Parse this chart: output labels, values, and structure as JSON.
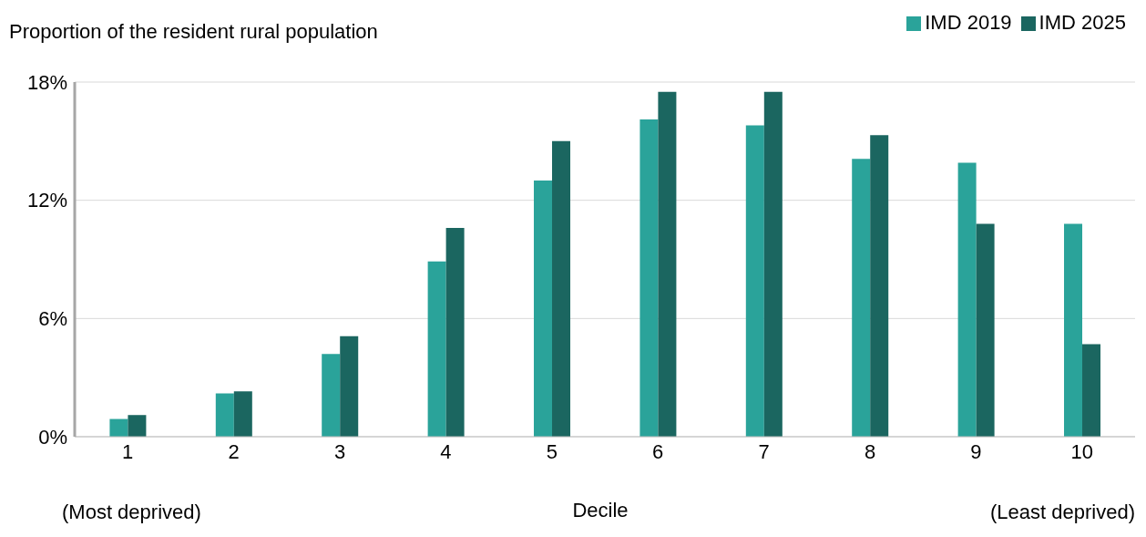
{
  "chart_data": {
    "type": "bar",
    "ylabel": "Proportion of the resident rural population",
    "xlabel": "Decile",
    "categories": [
      "1",
      "2",
      "3",
      "4",
      "5",
      "6",
      "7",
      "8",
      "9",
      "10"
    ],
    "series": [
      {
        "name": "IMD 2019",
        "color": "#2aa39a",
        "values": [
          0.9,
          2.2,
          4.2,
          8.9,
          13.0,
          16.1,
          15.8,
          14.1,
          13.9,
          10.8
        ]
      },
      {
        "name": "IMD 2025",
        "color": "#1b6660",
        "values": [
          1.1,
          2.3,
          5.1,
          10.6,
          15.0,
          17.5,
          17.5,
          15.3,
          10.8,
          4.7
        ]
      }
    ],
    "ylim": [
      0,
      18
    ],
    "yticks": [
      {
        "value": 0,
        "label": "0%"
      },
      {
        "value": 6,
        "label": "6%"
      },
      {
        "value": 12,
        "label": "12%"
      },
      {
        "value": 18,
        "label": "18%"
      }
    ],
    "grid": "y",
    "legend": "top right",
    "annotations": [
      "(Most deprived)",
      "(Least deprived)"
    ]
  }
}
